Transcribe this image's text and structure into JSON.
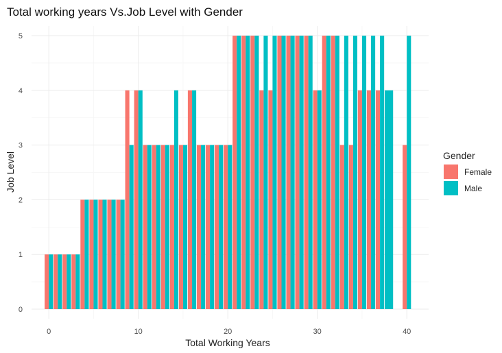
{
  "chart_data": {
    "type": "bar",
    "title": "Total working years Vs.Job Level with Gender",
    "xlabel": "Total Working Years",
    "ylabel": "Job Level",
    "xlim": [
      -1.5,
      41.5
    ],
    "ylim": [
      0,
      5
    ],
    "x_ticks": [
      0,
      10,
      20,
      30,
      40
    ],
    "y_ticks": [
      0,
      1,
      2,
      3,
      4,
      5
    ],
    "grid": true,
    "legend": {
      "title": "Gender",
      "position": "right"
    },
    "series": [
      {
        "name": "Female",
        "color": "#F8766D",
        "x": [
          0,
          1,
          2,
          3,
          4,
          5,
          6,
          7,
          8,
          9,
          10,
          11,
          12,
          13,
          14,
          15,
          16,
          17,
          18,
          19,
          20,
          21,
          22,
          23,
          24,
          25,
          26,
          27,
          28,
          29,
          30,
          31,
          32,
          33,
          34,
          35,
          36,
          37,
          40
        ],
        "values": [
          1,
          1,
          1,
          1,
          2,
          2,
          2,
          2,
          2,
          4,
          4,
          3,
          3,
          3,
          3,
          3,
          4,
          3,
          3,
          3,
          3,
          5,
          5,
          5,
          4,
          4,
          5,
          5,
          5,
          5,
          4,
          5,
          5,
          3,
          3,
          4,
          4,
          4,
          3
        ]
      },
      {
        "name": "Male",
        "color": "#00BFC4",
        "x": [
          0,
          1,
          2,
          3,
          4,
          5,
          6,
          7,
          8,
          9,
          10,
          11,
          12,
          13,
          14,
          15,
          16,
          17,
          18,
          19,
          20,
          21,
          22,
          23,
          24,
          25,
          26,
          27,
          28,
          29,
          30,
          31,
          32,
          33,
          34,
          35,
          36,
          37,
          38,
          40
        ],
        "values": [
          1,
          1,
          1,
          1,
          2,
          2,
          2,
          2,
          2,
          3,
          4,
          3,
          3,
          3,
          4,
          3,
          4,
          3,
          3,
          3,
          3,
          5,
          5,
          5,
          5,
          5,
          5,
          5,
          5,
          5,
          4,
          5,
          5,
          5,
          5,
          5,
          5,
          5,
          4,
          5
        ]
      }
    ]
  }
}
